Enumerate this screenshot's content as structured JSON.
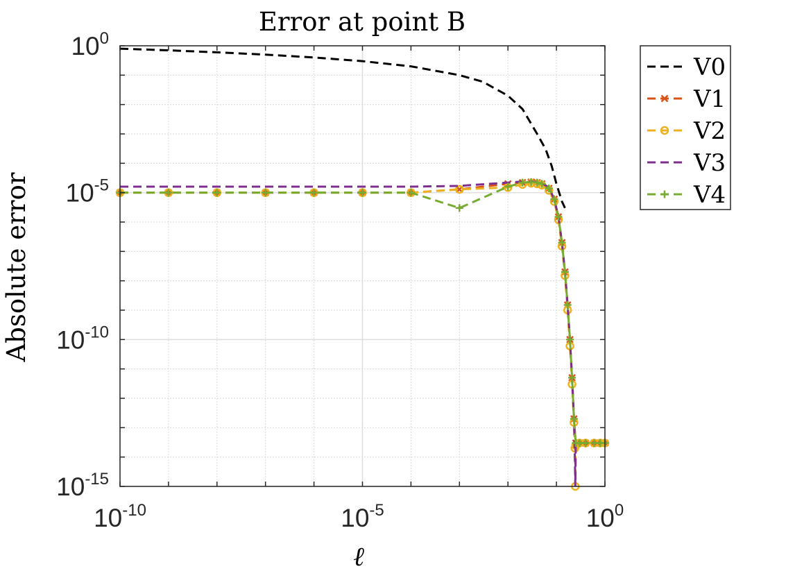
{
  "chart_data": {
    "type": "line",
    "title": "Error at point B",
    "xlabel": "ℓ",
    "ylabel": "Absolute error",
    "xscale": "log",
    "yscale": "log",
    "xlim": [
      1e-10,
      1
    ],
    "ylim": [
      1e-15,
      1
    ],
    "x_ticks": [
      {
        "value": 1e-10,
        "base": "10",
        "exp": "-10"
      },
      {
        "value": 1e-05,
        "base": "10",
        "exp": "-5"
      },
      {
        "value": 1,
        "base": "10",
        "exp": "0"
      }
    ],
    "y_ticks": [
      {
        "value": 1,
        "base": "10",
        "exp": "0"
      },
      {
        "value": 1e-05,
        "base": "10",
        "exp": "-5"
      },
      {
        "value": 1e-10,
        "base": "10",
        "exp": "-10"
      },
      {
        "value": 1e-15,
        "base": "10",
        "exp": "-15"
      }
    ],
    "grid": true,
    "legend_position": "outside-right",
    "series": [
      {
        "name": "V0",
        "color": "#000000",
        "marker": "none",
        "dash": "dashed",
        "points": [
          [
            1e-10,
            0.8
          ],
          [
            1e-09,
            0.7
          ],
          [
            1e-08,
            0.6
          ],
          [
            1e-07,
            0.5
          ],
          [
            1e-06,
            0.4
          ],
          [
            1e-05,
            0.3
          ],
          [
            0.0001,
            0.2
          ],
          [
            0.001,
            0.1
          ],
          [
            0.003,
            0.06
          ],
          [
            0.01,
            0.02
          ],
          [
            0.02,
            0.007
          ],
          [
            0.04,
            0.001
          ],
          [
            0.06,
            0.0003
          ],
          [
            0.08,
            8e-05
          ],
          [
            0.1,
            2e-05
          ],
          [
            0.13,
            5e-06
          ],
          [
            0.15,
            3e-06
          ]
        ]
      },
      {
        "name": "V1",
        "color": "#D95319",
        "marker": "x",
        "dash": "dashed",
        "points": [
          [
            1e-10,
            1e-05
          ],
          [
            1e-09,
            1e-05
          ],
          [
            1e-08,
            1e-05
          ],
          [
            1e-07,
            1e-05
          ],
          [
            1e-06,
            1e-05
          ],
          [
            1e-05,
            1e-05
          ],
          [
            0.0001,
            1e-05
          ],
          [
            0.001,
            1.3e-05
          ],
          [
            0.01,
            2e-05
          ],
          [
            0.02,
            2.2e-05
          ],
          [
            0.03,
            2.3e-05
          ],
          [
            0.04,
            2.2e-05
          ],
          [
            0.05,
            2e-05
          ],
          [
            0.07,
            1.4e-05
          ],
          [
            0.09,
            6e-06
          ],
          [
            0.11,
            1.5e-06
          ],
          [
            0.13,
            2e-07
          ],
          [
            0.15,
            2e-08
          ],
          [
            0.17,
            1.5e-09
          ],
          [
            0.19,
            1e-10
          ],
          [
            0.21,
            5e-12
          ],
          [
            0.23,
            2e-13
          ],
          [
            0.25,
            3e-14
          ],
          [
            0.3,
            3e-14
          ],
          [
            0.4,
            3e-14
          ],
          [
            0.6,
            3e-14
          ],
          [
            0.8,
            3e-14
          ],
          [
            1,
            3e-14
          ]
        ]
      },
      {
        "name": "V2",
        "color": "#EDB120",
        "marker": "o",
        "dash": "dashed",
        "points": [
          [
            1e-10,
            1e-05
          ],
          [
            1e-09,
            1e-05
          ],
          [
            1e-08,
            1e-05
          ],
          [
            1e-07,
            1e-05
          ],
          [
            1e-06,
            1e-05
          ],
          [
            1e-05,
            1e-05
          ],
          [
            0.0001,
            1e-05
          ],
          [
            0.001,
            1.3e-05
          ],
          [
            0.01,
            1.5e-05
          ],
          [
            0.02,
            1.9e-05
          ],
          [
            0.03,
            2.1e-05
          ],
          [
            0.04,
            2e-05
          ],
          [
            0.05,
            1.8e-05
          ],
          [
            0.07,
            1.2e-05
          ],
          [
            0.09,
            5e-06
          ],
          [
            0.11,
            1.2e-06
          ],
          [
            0.13,
            1.5e-07
          ],
          [
            0.15,
            1.5e-08
          ],
          [
            0.17,
            1e-09
          ],
          [
            0.19,
            6e-11
          ],
          [
            0.21,
            3e-12
          ],
          [
            0.23,
            1.5e-13
          ],
          [
            0.24,
            2e-14
          ],
          [
            0.245,
            1e-15
          ],
          [
            0.25,
            2.5e-14
          ],
          [
            0.3,
            3e-14
          ],
          [
            0.4,
            3e-14
          ],
          [
            0.6,
            3e-14
          ],
          [
            0.8,
            3e-14
          ],
          [
            1,
            3e-14
          ]
        ]
      },
      {
        "name": "V3",
        "color": "#7E2F8E",
        "marker": "none",
        "dash": "dashed",
        "points": [
          [
            1e-10,
            1.6e-05
          ],
          [
            1e-09,
            1.6e-05
          ],
          [
            1e-08,
            1.6e-05
          ],
          [
            1e-07,
            1.6e-05
          ],
          [
            1e-06,
            1.6e-05
          ],
          [
            1e-05,
            1.6e-05
          ],
          [
            0.0001,
            1.6e-05
          ],
          [
            0.001,
            1.7e-05
          ],
          [
            0.01,
            2.2e-05
          ],
          [
            0.02,
            2.4e-05
          ],
          [
            0.03,
            2.4e-05
          ],
          [
            0.04,
            2.3e-05
          ],
          [
            0.05,
            2.1e-05
          ],
          [
            0.07,
            1.5e-05
          ],
          [
            0.09,
            6e-06
          ],
          [
            0.11,
            1.5e-06
          ],
          [
            0.13,
            2e-07
          ],
          [
            0.15,
            2e-08
          ],
          [
            0.17,
            1.5e-09
          ],
          [
            0.19,
            1e-10
          ],
          [
            0.21,
            5e-12
          ],
          [
            0.23,
            2e-13
          ],
          [
            0.24,
            1e-14
          ],
          [
            0.245,
            1e-15
          ],
          [
            0.25,
            2.5e-14
          ],
          [
            0.3,
            3e-14
          ],
          [
            0.4,
            3e-14
          ],
          [
            0.6,
            3e-14
          ],
          [
            0.8,
            3e-14
          ],
          [
            1,
            3e-14
          ]
        ]
      },
      {
        "name": "V4",
        "color": "#77AC30",
        "marker": "+",
        "dash": "dashed",
        "points": [
          [
            1e-10,
            1e-05
          ],
          [
            1e-09,
            1e-05
          ],
          [
            1e-08,
            1e-05
          ],
          [
            1e-07,
            1e-05
          ],
          [
            1e-06,
            1e-05
          ],
          [
            1e-05,
            1e-05
          ],
          [
            0.0001,
            1e-05
          ],
          [
            0.001,
            3e-06
          ],
          [
            0.01,
            1.6e-05
          ],
          [
            0.02,
            2.2e-05
          ],
          [
            0.03,
            2.3e-05
          ],
          [
            0.04,
            2.2e-05
          ],
          [
            0.05,
            2e-05
          ],
          [
            0.07,
            1.4e-05
          ],
          [
            0.09,
            6e-06
          ],
          [
            0.11,
            1.5e-06
          ],
          [
            0.13,
            2e-07
          ],
          [
            0.15,
            2e-08
          ],
          [
            0.17,
            1.5e-09
          ],
          [
            0.19,
            1e-10
          ],
          [
            0.21,
            5e-12
          ],
          [
            0.23,
            2e-13
          ],
          [
            0.25,
            3e-14
          ],
          [
            0.3,
            3e-14
          ],
          [
            0.4,
            3e-14
          ],
          [
            0.6,
            3e-14
          ],
          [
            0.8,
            3e-14
          ],
          [
            1,
            3e-14
          ]
        ]
      }
    ]
  }
}
